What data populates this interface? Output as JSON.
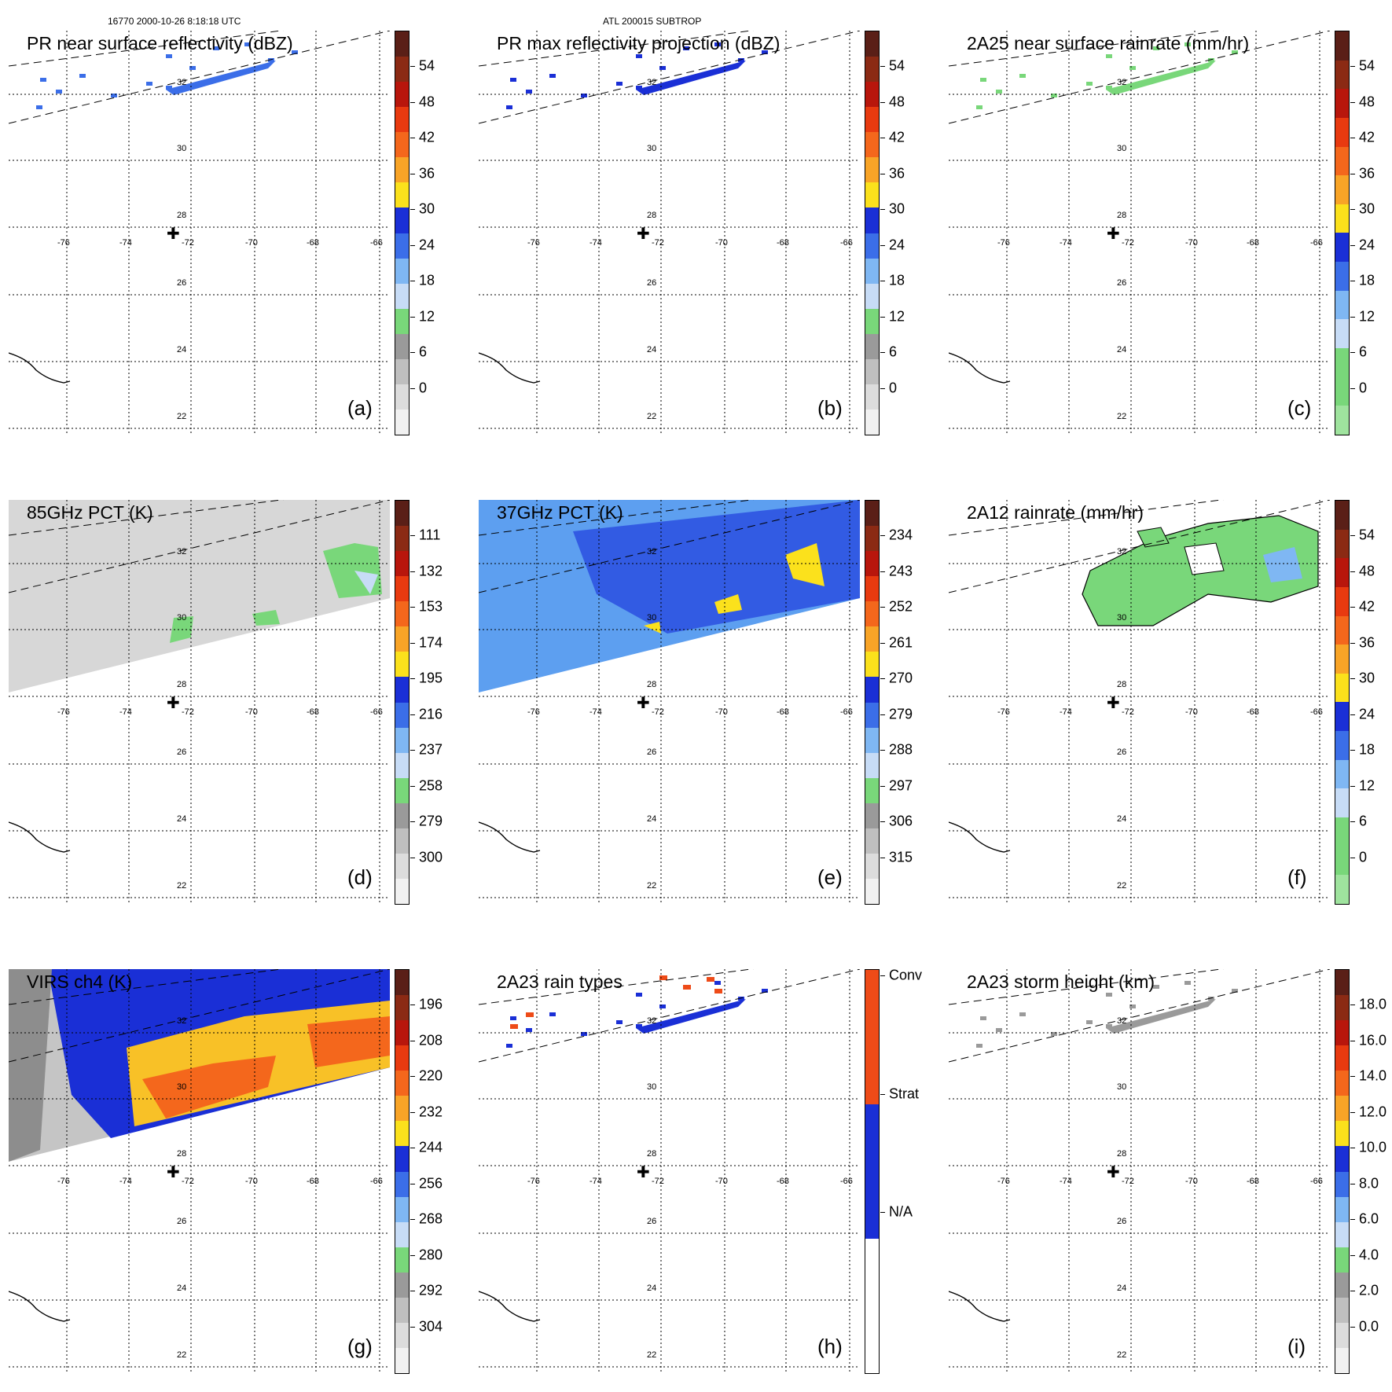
{
  "header": {
    "left": "16770 2000-10-26 8:18:18 UTC",
    "center": "ATL 200015 SUBTROP"
  },
  "map": {
    "lon_labels": [
      "-76",
      "-74",
      "-72",
      "-70",
      "-68",
      "-66"
    ],
    "lat_labels": [
      "32",
      "30",
      "28",
      "26",
      "24",
      "22"
    ],
    "center_marker": "plus-icon"
  },
  "panels": [
    {
      "id": "a",
      "title": "PR near surface reflectivity (dBZ)",
      "letter": "(a)",
      "ticks": [
        "54",
        "48",
        "42",
        "36",
        "30",
        "24",
        "18",
        "12",
        "6",
        "0"
      ],
      "colors": [
        "#5a1f17",
        "#8b2a14",
        "#b8160c",
        "#e83a10",
        "#f4671c",
        "#f8a427",
        "#fbe11c",
        "#1a2fd6",
        "#3b6ee8",
        "#7fb7f3",
        "#c7dcf6",
        "#79d77a",
        "#9a9a9a",
        "#bfbfbf",
        "#dcdcdc",
        "#f1f1f1"
      ],
      "data_style": "sparse-blue"
    },
    {
      "id": "b",
      "title": "PR max reflectivity projection (dBZ)",
      "letter": "(b)",
      "ticks": [
        "54",
        "48",
        "42",
        "36",
        "30",
        "24",
        "18",
        "12",
        "6",
        "0"
      ],
      "colors": [
        "#5a1f17",
        "#8b2a14",
        "#b8160c",
        "#e83a10",
        "#f4671c",
        "#f8a427",
        "#fbe11c",
        "#1a2fd6",
        "#3b6ee8",
        "#7fb7f3",
        "#c7dcf6",
        "#79d77a",
        "#9a9a9a",
        "#bfbfbf",
        "#dcdcdc",
        "#f1f1f1"
      ],
      "data_style": "sparse-dark"
    },
    {
      "id": "c",
      "title": "2A25 near surface rainrate (mm/hr)",
      "letter": "(c)",
      "ticks": [
        "54",
        "48",
        "42",
        "36",
        "30",
        "24",
        "18",
        "12",
        "6",
        "0"
      ],
      "colors": [
        "#5a1f17",
        "#8b2a14",
        "#b8160c",
        "#e83a10",
        "#f4671c",
        "#f8a427",
        "#fbe11c",
        "#1a2fd6",
        "#3b6ee8",
        "#7fb7f3",
        "#c7dcf6",
        "#79d77a",
        "#79d77a",
        "#9fe39e"
      ],
      "data_style": "sparse-green"
    },
    {
      "id": "d",
      "title": "85GHz PCT (K)",
      "letter": "(d)",
      "ticks": [
        "111",
        "132",
        "153",
        "174",
        "195",
        "216",
        "237",
        "258",
        "279",
        "300"
      ],
      "colors": [
        "#5a1f17",
        "#8b2a14",
        "#b8160c",
        "#e83a10",
        "#f4671c",
        "#f8a427",
        "#fbe11c",
        "#1a2fd6",
        "#3b6ee8",
        "#7fb7f3",
        "#c7dcf6",
        "#79d77a",
        "#9a9a9a",
        "#bfbfbf",
        "#dcdcdc",
        "#f1f1f1"
      ],
      "data_style": "swath-gray"
    },
    {
      "id": "e",
      "title": "37GHz PCT (K)",
      "letter": "(e)",
      "ticks": [
        "234",
        "243",
        "252",
        "261",
        "270",
        "279",
        "288",
        "297",
        "306",
        "315"
      ],
      "colors": [
        "#5a1f17",
        "#8b2a14",
        "#b8160c",
        "#e83a10",
        "#f4671c",
        "#f8a427",
        "#fbe11c",
        "#1a2fd6",
        "#3b6ee8",
        "#7fb7f3",
        "#c7dcf6",
        "#79d77a",
        "#9a9a9a",
        "#bfbfbf",
        "#dcdcdc",
        "#f1f1f1"
      ],
      "data_style": "swath-blue"
    },
    {
      "id": "f",
      "title": "2A12 rainrate (mm/hr)",
      "letter": "(f)",
      "ticks": [
        "54",
        "48",
        "42",
        "36",
        "30",
        "24",
        "18",
        "12",
        "6",
        "0"
      ],
      "colors": [
        "#5a1f17",
        "#8b2a14",
        "#b8160c",
        "#e83a10",
        "#f4671c",
        "#f8a427",
        "#fbe11c",
        "#1a2fd6",
        "#3b6ee8",
        "#7fb7f3",
        "#c7dcf6",
        "#79d77a",
        "#79d77a",
        "#9fe39e"
      ],
      "data_style": "blob-green"
    },
    {
      "id": "g",
      "title": "VIRS ch4 (K)",
      "letter": "(g)",
      "ticks": [
        "196",
        "208",
        "220",
        "232",
        "244",
        "256",
        "268",
        "280",
        "292",
        "304"
      ],
      "colors": [
        "#5a1f17",
        "#8b2a14",
        "#b8160c",
        "#e83a10",
        "#f4671c",
        "#f8a427",
        "#fbe11c",
        "#1a2fd6",
        "#3b6ee8",
        "#7fb7f3",
        "#c7dcf6",
        "#79d77a",
        "#9a9a9a",
        "#bfbfbf",
        "#dcdcdc",
        "#f1f1f1"
      ],
      "data_style": "swath-ir"
    },
    {
      "id": "h",
      "title": "2A23 rain types",
      "letter": "(h)",
      "ticks": [
        "Conv",
        "Strat",
        "N/A"
      ],
      "colors": [
        "#ee4b18",
        "#1a2fd6",
        "#ffffff"
      ],
      "data_style": "sparse-type"
    },
    {
      "id": "i",
      "title": "2A23 storm height (km)",
      "letter": "(i)",
      "ticks": [
        "18.0",
        "16.0",
        "14.0",
        "12.0",
        "10.0",
        "8.0",
        "6.0",
        "4.0",
        "2.0",
        "0.0"
      ],
      "colors": [
        "#5a1f17",
        "#8b2a14",
        "#b8160c",
        "#e83a10",
        "#f4671c",
        "#f8a427",
        "#fbe11c",
        "#1a2fd6",
        "#3b6ee8",
        "#7fb7f3",
        "#c7dcf6",
        "#79d77a",
        "#9a9a9a",
        "#bfbfbf",
        "#dcdcdc",
        "#f1f1f1"
      ],
      "data_style": "sparse-gray"
    }
  ]
}
